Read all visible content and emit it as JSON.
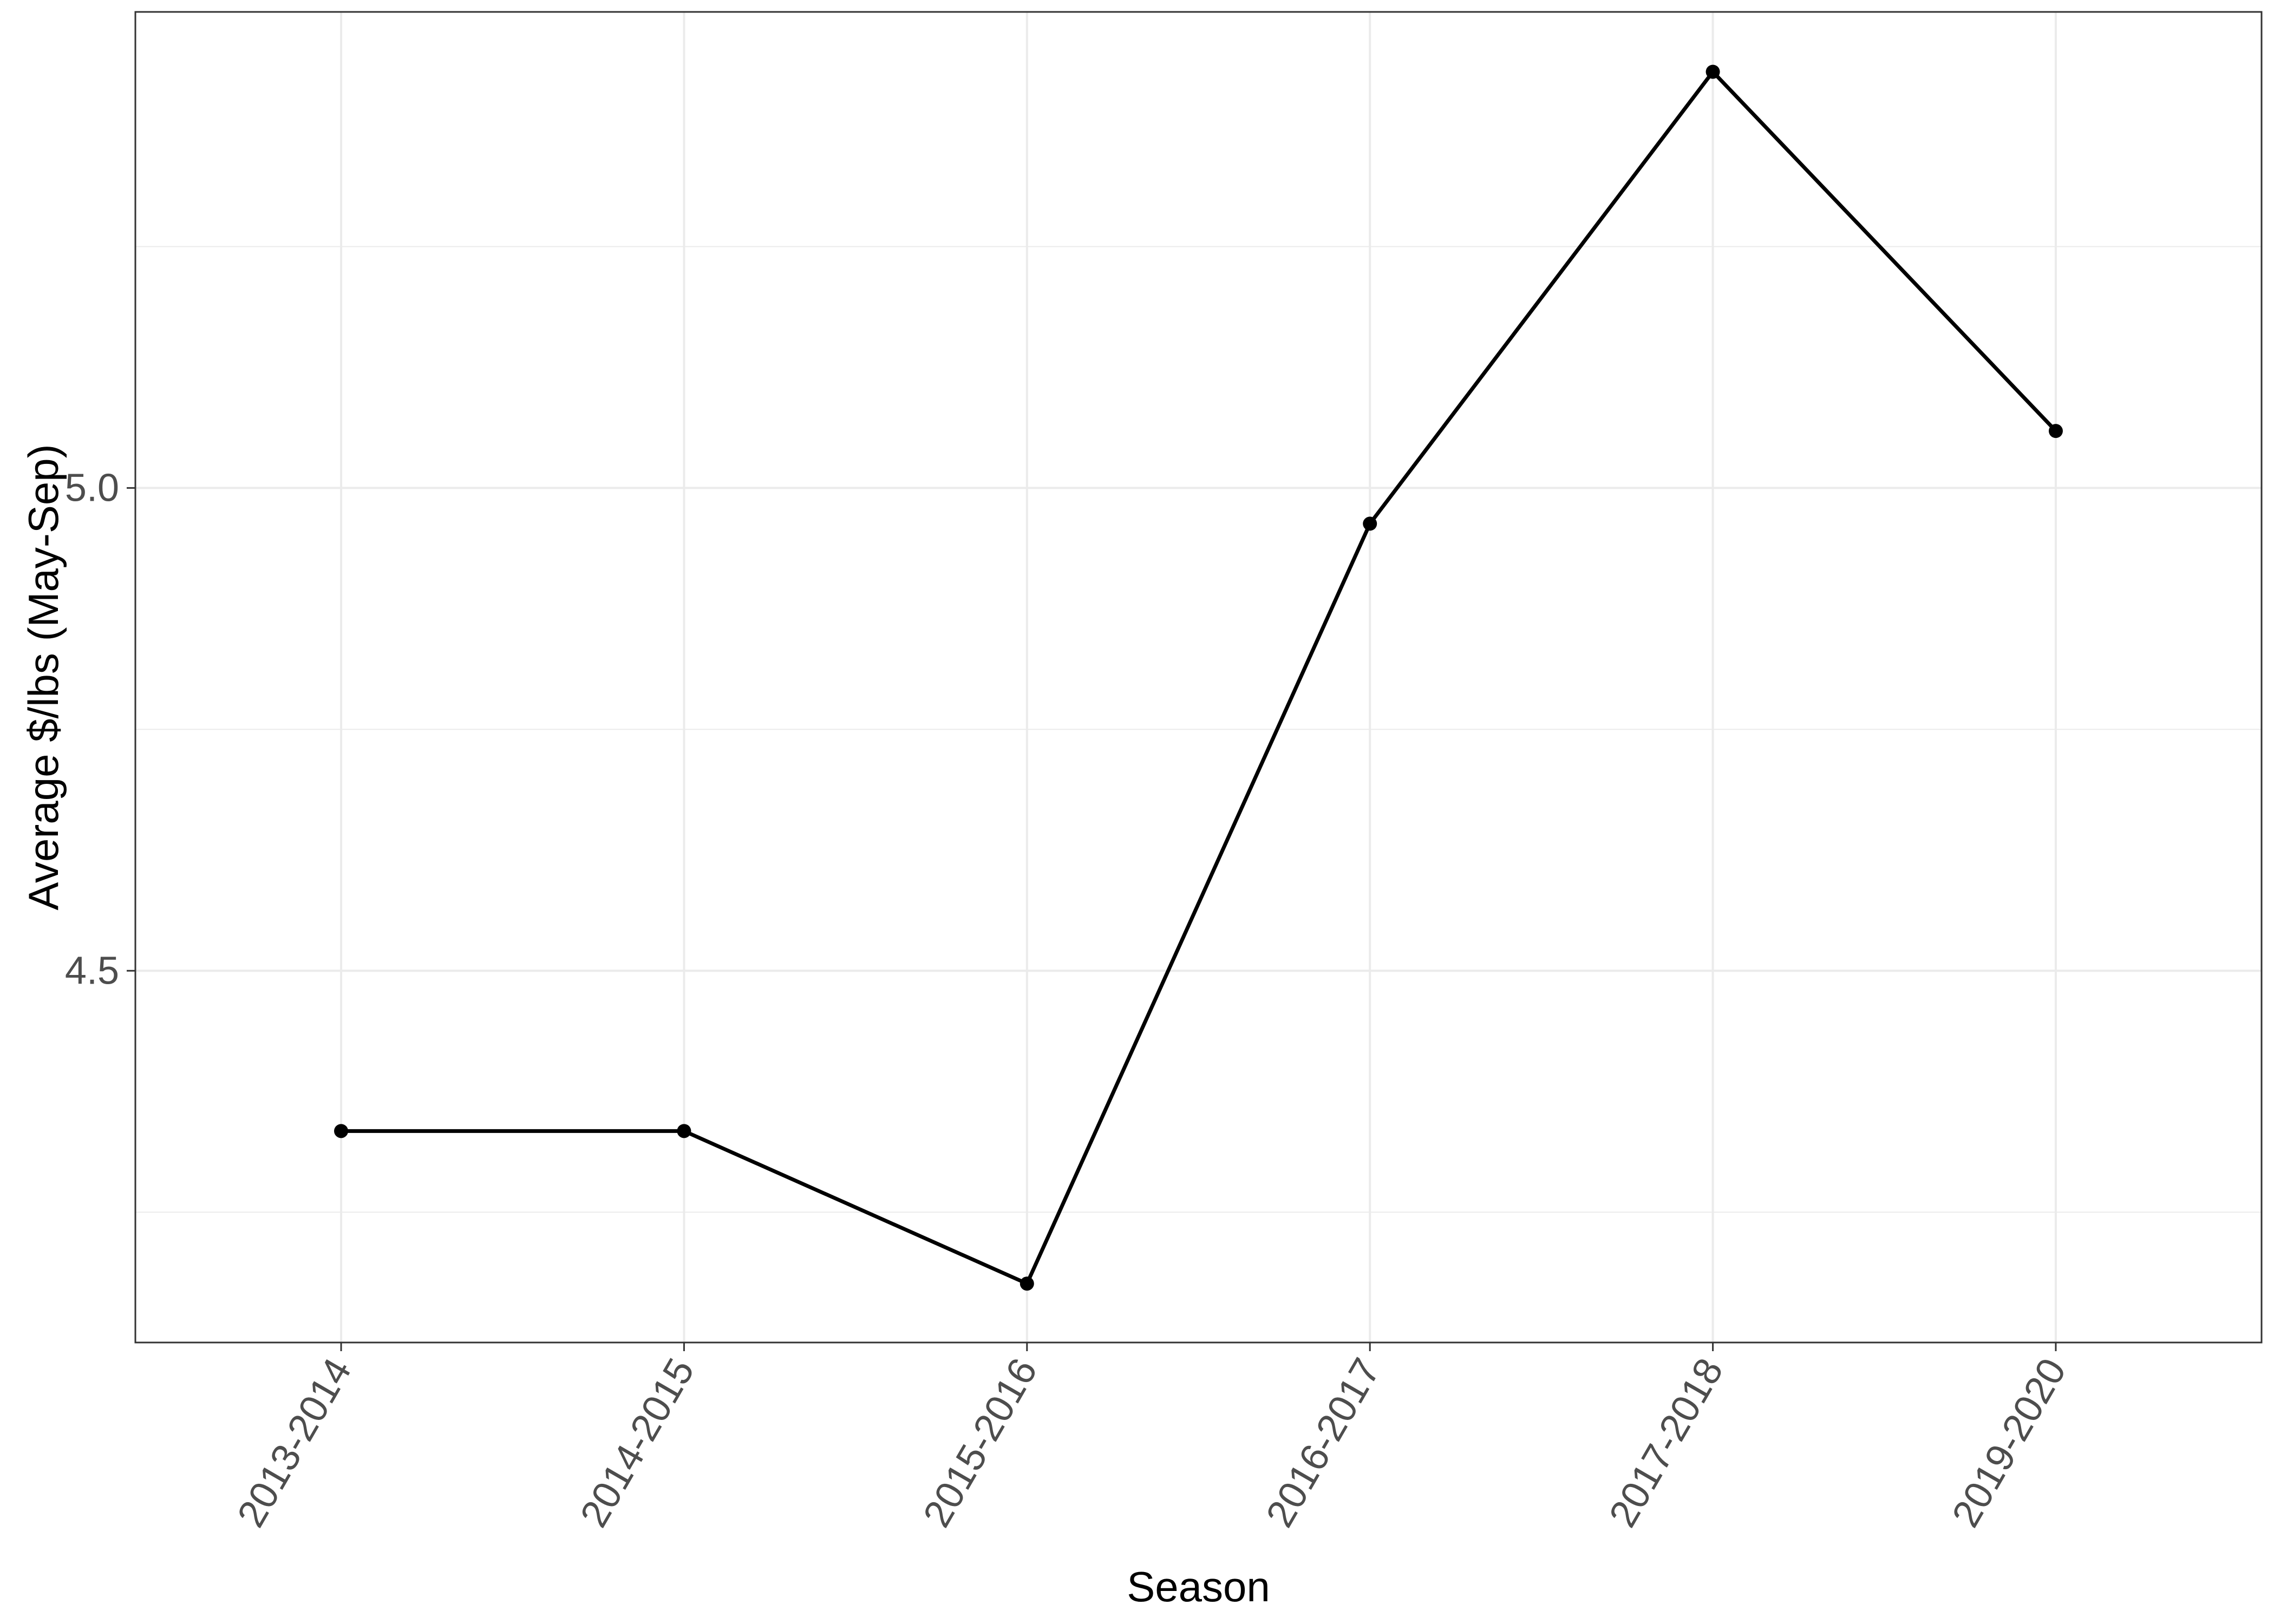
{
  "chart_data": {
    "type": "line",
    "title": "",
    "xlabel": "Season",
    "ylabel": "Average $/lbs (May-Sep)",
    "categories": [
      "2013-2014",
      "2014-2015",
      "2015-2016",
      "2016-2017",
      "2017-2018",
      "2019-2020"
    ],
    "series": [
      {
        "values": [
          4.334,
          4.334,
          4.176,
          4.963,
          5.431,
          5.059
        ]
      }
    ],
    "ylim": [
      4.115,
      5.493
    ],
    "y_ticks": [
      4.5,
      5.0
    ],
    "y_tick_labels": [
      "4.5",
      "5.0"
    ],
    "y_minor_ticks": [
      4.25,
      4.75,
      5.25
    ],
    "grid": true,
    "legend": "none",
    "theme": "bw",
    "colors": {
      "line": "#000000",
      "point": "#000000",
      "grid": "#ebebeb",
      "panel_border": "#333333",
      "tick_text": "#4d4d4d",
      "axis_title": "#000000"
    }
  }
}
